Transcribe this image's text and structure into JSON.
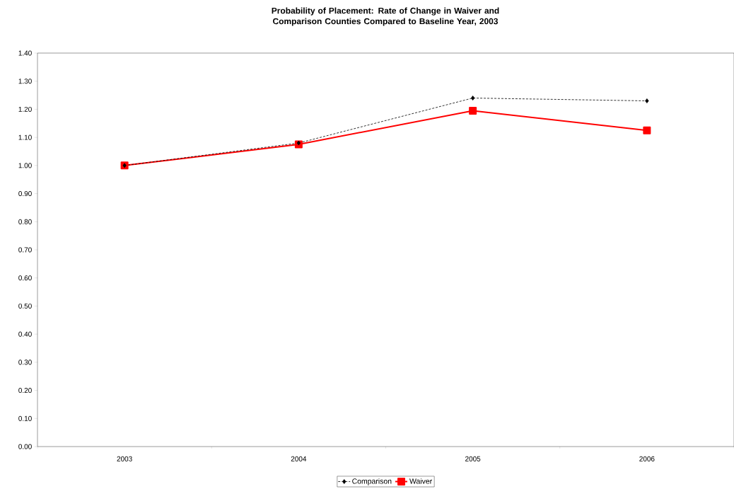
{
  "chart_data": {
    "type": "line",
    "title": "Probability of Placement: Rate of Change in Waiver and Comparison Counties Compared to Baseline Year, 2003",
    "categories": [
      "2003",
      "2004",
      "2005",
      "2006"
    ],
    "series": [
      {
        "name": "Comparison",
        "color": "#000000",
        "values": [
          1.0,
          1.08,
          1.24,
          1.23
        ],
        "marker": "diamond",
        "line_style": "dotted"
      },
      {
        "name": "Waiver",
        "color": "#ff0000",
        "values": [
          1.0,
          1.075,
          1.195,
          1.125
        ],
        "marker": "square",
        "line_style": "solid"
      }
    ],
    "ylim": [
      0,
      1.4
    ],
    "yticks": [
      {
        "value": 0,
        "label": "0.00"
      },
      {
        "value": 0.1,
        "label": "0.10"
      },
      {
        "value": 0.2,
        "label": "0.20"
      },
      {
        "value": 0.3,
        "label": "0.30"
      },
      {
        "value": 0.4,
        "label": "0.40"
      },
      {
        "value": 0.5,
        "label": "0.50"
      },
      {
        "value": 0.6,
        "label": "0.60"
      },
      {
        "value": 0.7,
        "label": "0.70"
      },
      {
        "value": 0.8,
        "label": "0.80"
      },
      {
        "value": 0.9,
        "label": "0.90"
      },
      {
        "value": 1.0,
        "label": "1.00"
      },
      {
        "value": 1.1,
        "label": "1.10"
      },
      {
        "value": 1.2,
        "label": "1.20"
      },
      {
        "value": 1.3,
        "label": "1.30"
      },
      {
        "value": 1.4,
        "label": "1.40"
      }
    ],
    "grid": false,
    "legend": "bottom"
  }
}
